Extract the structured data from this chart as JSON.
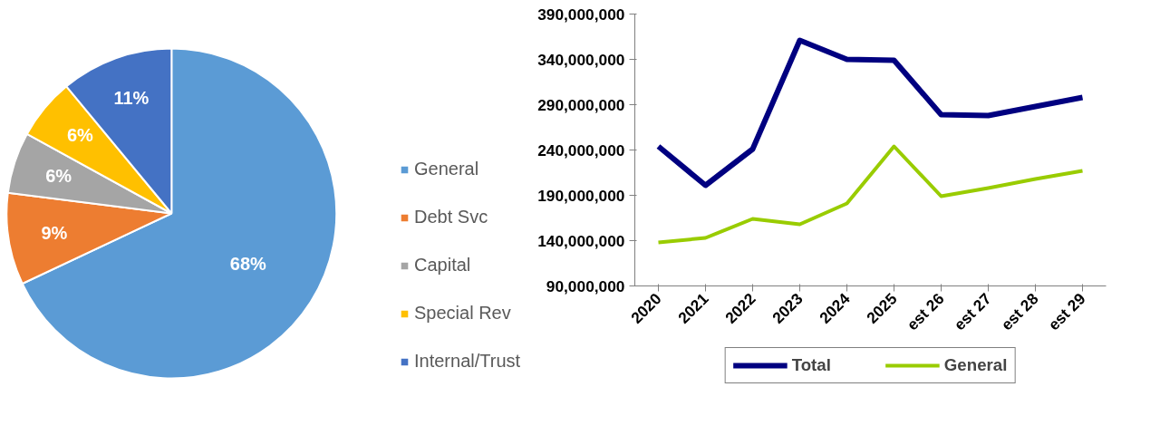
{
  "chart_data": [
    {
      "type": "pie",
      "categories": [
        "General",
        "Debt Svc",
        "Capital",
        "Special Rev",
        "Internal/Trust"
      ],
      "values": [
        68,
        9,
        6,
        6,
        11
      ],
      "colors": [
        "#5b9bd5",
        "#ed7d31",
        "#a5a5a5",
        "#ffc000",
        "#4472c4"
      ],
      "value_labels": [
        "68%",
        "9%",
        "6%",
        "6%",
        "11%"
      ],
      "legend": "right"
    },
    {
      "type": "line",
      "categories": [
        "2020",
        "2021",
        "2022",
        "2023",
        "2024",
        "2025",
        "est 26",
        "est 27",
        "est 28",
        "est 29"
      ],
      "series": [
        {
          "name": "Total",
          "color": "#000080",
          "values": [
            244000000,
            201000000,
            241000000,
            361000000,
            340000000,
            339000000,
            279000000,
            278000000,
            288000000,
            298000000
          ]
        },
        {
          "name": "General",
          "color": "#99cc00",
          "values": [
            138000000,
            143000000,
            164000000,
            158000000,
            181000000,
            244000000,
            189000000,
            198000000,
            208000000,
            217000000
          ]
        }
      ],
      "ylim": [
        90000000,
        390000000
      ],
      "yticks": [
        {
          "value": 90000000,
          "label": "90,000,000"
        },
        {
          "value": 140000000,
          "label": "140,000,000"
        },
        {
          "value": 190000000,
          "label": "190,000,000"
        },
        {
          "value": 240000000,
          "label": "240,000,000"
        },
        {
          "value": 290000000,
          "label": "290,000,000"
        },
        {
          "value": 340000000,
          "label": "340,000,000"
        },
        {
          "value": 390000000,
          "label": "390,000,000"
        }
      ],
      "grid": false,
      "legend": "bottom",
      "marker": "none",
      "line_style": "solid"
    }
  ]
}
